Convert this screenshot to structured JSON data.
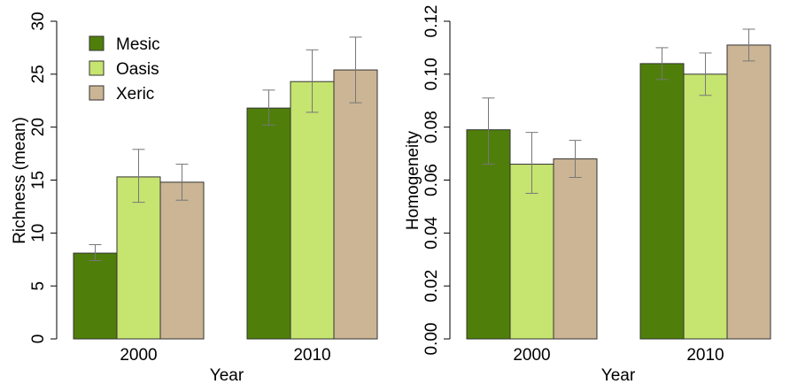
{
  "chart_data": [
    {
      "type": "bar",
      "xlabel": "Year",
      "ylabel": "Richness (mean)",
      "ylim": [
        0,
        30
      ],
      "yticks": [
        0,
        5,
        10,
        15,
        20,
        25,
        30
      ],
      "categories": [
        "2000",
        "2010"
      ],
      "legend_position": "top-left",
      "series": [
        {
          "name": "Mesic",
          "color": "#4F7F0A",
          "values": [
            8.1,
            21.8
          ],
          "err_low": [
            7.4,
            20.2
          ],
          "err_high": [
            8.9,
            23.5
          ]
        },
        {
          "name": "Oasis",
          "color": "#C6E470",
          "values": [
            15.3,
            24.3
          ],
          "err_low": [
            12.9,
            21.4
          ],
          "err_high": [
            17.9,
            27.3
          ]
        },
        {
          "name": "Xeric",
          "color": "#CBB594",
          "values": [
            14.8,
            25.4
          ],
          "err_low": [
            13.1,
            22.3
          ],
          "err_high": [
            16.5,
            28.5
          ]
        }
      ]
    },
    {
      "type": "bar",
      "xlabel": "Year",
      "ylabel": "Homogeneity",
      "ylim": [
        0,
        0.12
      ],
      "yticks": [
        "0.00",
        "0.02",
        "0.04",
        "0.06",
        "0.08",
        "0.10",
        "0.12"
      ],
      "categories": [
        "2000",
        "2010"
      ],
      "series": [
        {
          "name": "Mesic",
          "color": "#4F7F0A",
          "values": [
            0.079,
            0.104
          ],
          "err_low": [
            0.066,
            0.098
          ],
          "err_high": [
            0.091,
            0.11
          ]
        },
        {
          "name": "Oasis",
          "color": "#C6E470",
          "values": [
            0.066,
            0.1
          ],
          "err_low": [
            0.055,
            0.092
          ],
          "err_high": [
            0.078,
            0.108
          ]
        },
        {
          "name": "Xeric",
          "color": "#CBB594",
          "values": [
            0.068,
            0.111
          ],
          "err_low": [
            0.061,
            0.105
          ],
          "err_high": [
            0.075,
            0.117
          ]
        }
      ]
    }
  ]
}
